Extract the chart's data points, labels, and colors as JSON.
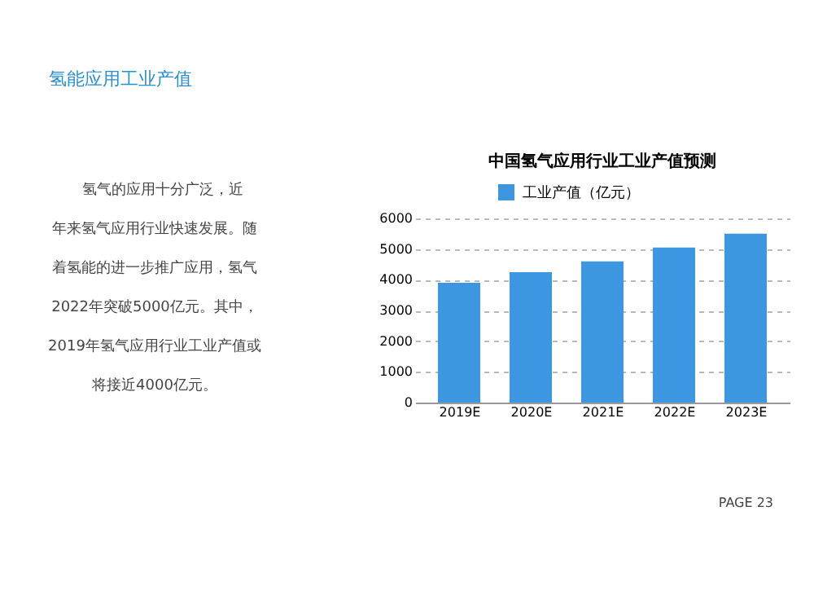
{
  "chart_data": {
    "type": "bar",
    "title": "中国氢气应用行业工业产值预测",
    "categories": [
      "2019E",
      "2020E",
      "2021E",
      "2022E",
      "2023E"
    ],
    "series": [
      {
        "name": "工业产值（亿元）",
        "color": "#3d97e0",
        "values": [
          3900,
          4250,
          4600,
          5050,
          5500
        ]
      }
    ],
    "ylim": [
      0,
      6000
    ],
    "yticks": [
      0,
      1000,
      2000,
      3000,
      4000,
      5000,
      6000
    ],
    "grid": "y",
    "legend": "top",
    "annotations": [
      "氢能应用工业产值",
      "氢气的应用十分广泛，近",
      "年来氢气应用行业快速发展。随",
      "着氢能的进一步推广应用，氢气",
      "2022年突破5000亿元。其中，",
      "2019年氢气应用行业工业产值或",
      "将接近4000亿元。",
      "PAGE 23"
    ]
  }
}
